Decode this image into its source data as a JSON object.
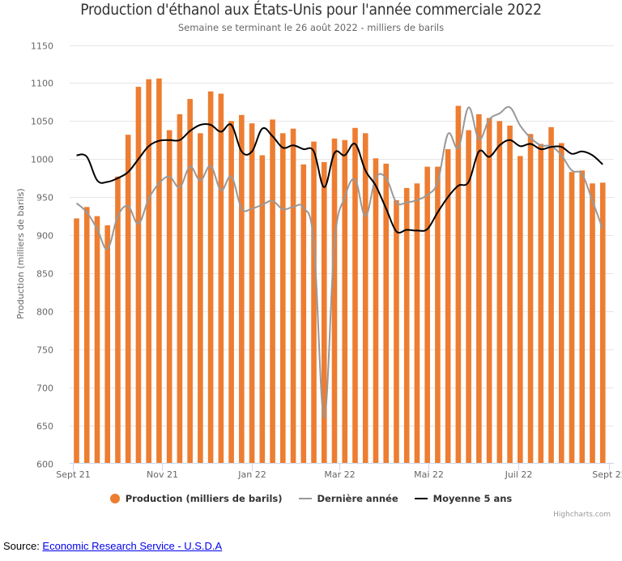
{
  "chart_data": {
    "type": "bar",
    "title": "Production d'éthanol aux États-Unis pour l'année commerciale 2022",
    "subtitle": "Semaine se terminant le 26 août 2022 - milliers de barils",
    "xlabel": "",
    "ylabel": "Production (milliers de barils)",
    "ylim": [
      600,
      1150
    ],
    "yticks": [
      600,
      650,
      700,
      750,
      800,
      850,
      900,
      950,
      1000,
      1050,
      1100,
      1150
    ],
    "xtick_labels": [
      "Sept 21",
      "Nov 21",
      "Jan 22",
      "Mar 22",
      "Mai 22",
      "Juil 22",
      "Sept 22"
    ],
    "grid": true,
    "legend_position": "bottom-center",
    "colors": {
      "production": "#ed7d31",
      "last_year": "#999999",
      "avg5": "#000000"
    },
    "series": [
      {
        "name": "Production (milliers de barils)",
        "type": "bar",
        "values": [
          922,
          937,
          925,
          913,
          977,
          1032,
          1095,
          1105,
          1106,
          1038,
          1059,
          1079,
          1034,
          1089,
          1086,
          1050,
          1058,
          1047,
          1005,
          1052,
          1034,
          1040,
          993,
          1023,
          996,
          1027,
          1025,
          1041,
          1034,
          1001,
          994,
          946,
          962,
          968,
          990,
          990,
          1013,
          1070,
          1038,
          1059,
          1054,
          1050,
          1044,
          1004,
          1033,
          1020,
          1042,
          1021,
          983,
          985,
          968,
          969
        ]
      },
      {
        "name": "Dernière année",
        "type": "line",
        "values": [
          942,
          930,
          908,
          882,
          925,
          938,
          915,
          948,
          968,
          977,
          963,
          990,
          972,
          991,
          959,
          977,
          935,
          935,
          940,
          945,
          934,
          937,
          936,
          890,
          660,
          890,
          950,
          973,
          925,
          975,
          975,
          943,
          943,
          946,
          953,
          970,
          1033,
          1015,
          1068,
          1026,
          1052,
          1060,
          1068,
          1044,
          1028,
          1018,
          1017,
          1005,
          985,
          980,
          945,
          908
        ]
      },
      {
        "name": "Moyenne 5 ans",
        "type": "line",
        "values": [
          1005,
          1003,
          972,
          970,
          975,
          983,
          1000,
          1017,
          1024,
          1025,
          1025,
          1037,
          1045,
          1045,
          1036,
          1045,
          1010,
          1010,
          1040,
          1030,
          1015,
          1018,
          1013,
          1010,
          963,
          1008,
          1005,
          1020,
          985,
          965,
          935,
          905,
          907,
          906,
          908,
          930,
          950,
          965,
          970,
          1010,
          1003,
          1018,
          1025,
          1017,
          1020,
          1013,
          1016,
          1016,
          1007,
          1010,
          1005,
          993
        ]
      }
    ]
  },
  "legend": {
    "items": [
      "Production (milliers de barils)",
      "Dernière année",
      "Moyenne 5 ans"
    ]
  },
  "credits": "Highcharts.com",
  "source": {
    "label": "Source: ",
    "link_text": "Economic Research Service - U.S.D.A"
  }
}
